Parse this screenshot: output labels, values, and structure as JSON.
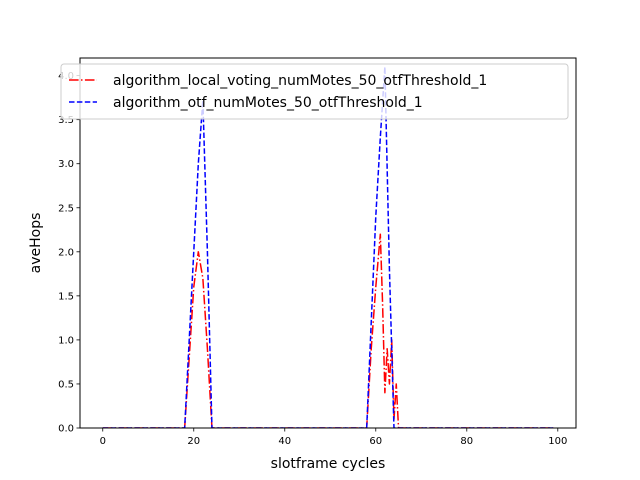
{
  "chart_data": {
    "type": "line",
    "title": "",
    "xlabel": "slotframe cycles",
    "ylabel": "aveHops",
    "xlim": [
      -5,
      104
    ],
    "ylim": [
      0,
      4.2
    ],
    "xticks": [
      0,
      20,
      40,
      60,
      80,
      100
    ],
    "yticks": [
      0.0,
      0.5,
      1.0,
      1.5,
      2.0,
      2.5,
      3.0,
      3.5,
      4.0
    ],
    "grid": false,
    "legend_position": "top",
    "series": [
      {
        "name": "algorithm_local_voting_numMotes_50_otfThreshold_1",
        "color": "#ff0000",
        "style": "dashdot",
        "points": [
          [
            0,
            0
          ],
          [
            18,
            0
          ],
          [
            19,
            0.8
          ],
          [
            20,
            1.6
          ],
          [
            21,
            2.0
          ],
          [
            22,
            1.7
          ],
          [
            23,
            0.9
          ],
          [
            24,
            0
          ],
          [
            58,
            0
          ],
          [
            59,
            0.9
          ],
          [
            60,
            1.6
          ],
          [
            61,
            2.2
          ],
          [
            61.5,
            1.4
          ],
          [
            62,
            0.4
          ],
          [
            62.5,
            0.9
          ],
          [
            63,
            0.5
          ],
          [
            63.5,
            1.0
          ],
          [
            64,
            0.1
          ],
          [
            64.5,
            0.5
          ],
          [
            65,
            0
          ],
          [
            99,
            0
          ]
        ]
      },
      {
        "name": "algorithm_otf_numMotes_50_otfThreshold_1",
        "color": "#0000ff",
        "style": "dashed",
        "points": [
          [
            0,
            0
          ],
          [
            18,
            0
          ],
          [
            19,
            1.0
          ],
          [
            20,
            2.0
          ],
          [
            21,
            3.0
          ],
          [
            22,
            3.72
          ],
          [
            23,
            2.0
          ],
          [
            24,
            0
          ],
          [
            58,
            0
          ],
          [
            59,
            1.2
          ],
          [
            60,
            2.4
          ],
          [
            61,
            3.3
          ],
          [
            62,
            4.1
          ],
          [
            63,
            1.8
          ],
          [
            64,
            0
          ],
          [
            99,
            0
          ]
        ]
      }
    ]
  }
}
